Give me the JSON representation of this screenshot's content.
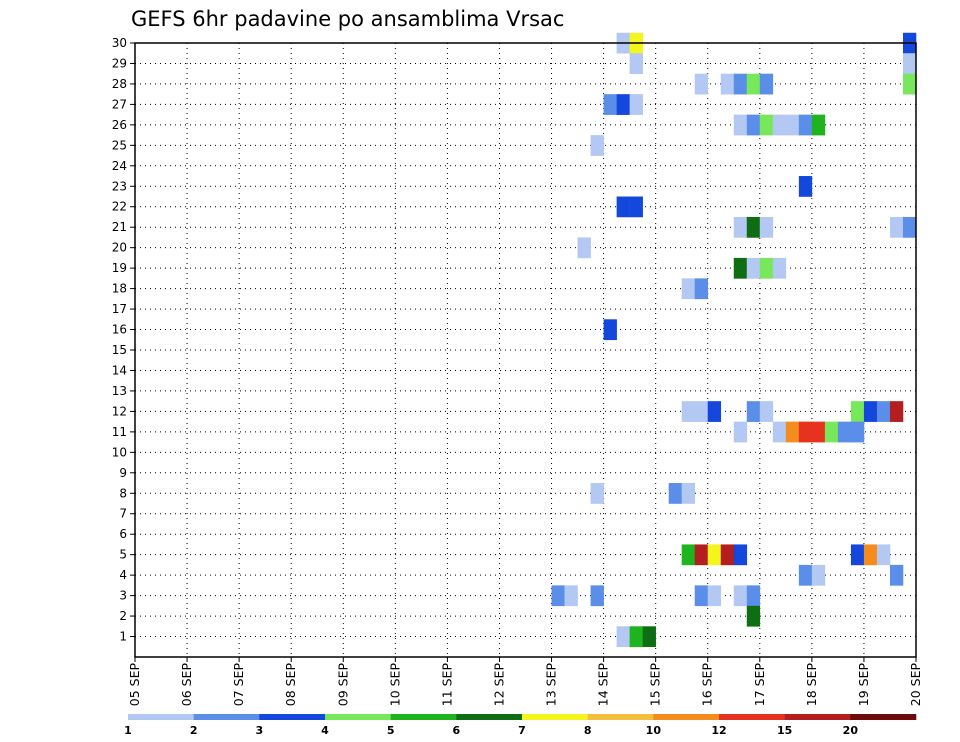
{
  "chart_data": {
    "type": "heatmap",
    "title": "GEFS 6hr padavine po ansamblima Vrsac",
    "xlabel": "",
    "ylabel": "",
    "x_tick_labels": [
      "05 SEP",
      "06 SEP",
      "07 SEP",
      "08 SEP",
      "09 SEP",
      "10 SEP",
      "11 SEP",
      "12 SEP",
      "13 SEP",
      "14 SEP",
      "15 SEP",
      "16 SEP",
      "17 SEP",
      "18 SEP",
      "19 SEP",
      "20 SEP"
    ],
    "y_tick_labels": [
      "1",
      "2",
      "3",
      "4",
      "5",
      "6",
      "7",
      "8",
      "9",
      "10",
      "11",
      "12",
      "13",
      "14",
      "15",
      "16",
      "17",
      "18",
      "19",
      "20",
      "21",
      "22",
      "23",
      "24",
      "25",
      "26",
      "27",
      "28",
      "29",
      "30"
    ],
    "x_range": [
      0,
      60
    ],
    "y_range": [
      0,
      30
    ],
    "x_units": "6-hour steps from 05 SEP 00Z",
    "grid": true,
    "colorbar": {
      "levels": [
        "1",
        "2",
        "3",
        "4",
        "5",
        "6",
        "7",
        "8",
        "10",
        "12",
        "15",
        "20"
      ],
      "colors": [
        "#b3c8f2",
        "#5b8ee8",
        "#1447dc",
        "#76e85a",
        "#1eb41e",
        "#0f6e14",
        "#f5f51e",
        "#f5be3c",
        "#f58c1e",
        "#e6321e",
        "#b41e1e",
        "#6e0a0a"
      ]
    },
    "points": [
      {
        "x": 37.5,
        "y": 30,
        "c": 0
      },
      {
        "x": 38.5,
        "y": 30,
        "c": 6
      },
      {
        "x": 59.5,
        "y": 30,
        "c": 2
      },
      {
        "x": 38.5,
        "y": 29,
        "c": 0
      },
      {
        "x": 59.5,
        "y": 29,
        "c": 0
      },
      {
        "x": 43.5,
        "y": 28,
        "c": 0
      },
      {
        "x": 45.5,
        "y": 28,
        "c": 0
      },
      {
        "x": 46.5,
        "y": 28,
        "c": 1
      },
      {
        "x": 47.5,
        "y": 28,
        "c": 3
      },
      {
        "x": 48.5,
        "y": 28,
        "c": 1
      },
      {
        "x": 59.5,
        "y": 28,
        "c": 3
      },
      {
        "x": 36.5,
        "y": 27,
        "c": 1
      },
      {
        "x": 37.5,
        "y": 27,
        "c": 2
      },
      {
        "x": 38.5,
        "y": 27,
        "c": 0
      },
      {
        "x": 46.5,
        "y": 26,
        "c": 0
      },
      {
        "x": 47.5,
        "y": 26,
        "c": 1
      },
      {
        "x": 48.5,
        "y": 26,
        "c": 3
      },
      {
        "x": 49.5,
        "y": 26,
        "c": 0
      },
      {
        "x": 50.5,
        "y": 26,
        "c": 0
      },
      {
        "x": 51.5,
        "y": 26,
        "c": 1
      },
      {
        "x": 52.5,
        "y": 26,
        "c": 4
      },
      {
        "x": 35.5,
        "y": 25,
        "c": 0
      },
      {
        "x": 51.5,
        "y": 23,
        "c": 2
      },
      {
        "x": 37.5,
        "y": 22,
        "c": 2
      },
      {
        "x": 38.5,
        "y": 22,
        "c": 2
      },
      {
        "x": 46.5,
        "y": 21,
        "c": 0
      },
      {
        "x": 47.5,
        "y": 21,
        "c": 5
      },
      {
        "x": 48.5,
        "y": 21,
        "c": 0
      },
      {
        "x": 58.5,
        "y": 21,
        "c": 0
      },
      {
        "x": 59.5,
        "y": 21,
        "c": 1
      },
      {
        "x": 34.5,
        "y": 20,
        "c": 0
      },
      {
        "x": 46.5,
        "y": 19,
        "c": 5
      },
      {
        "x": 47.5,
        "y": 19,
        "c": 0
      },
      {
        "x": 48.5,
        "y": 19,
        "c": 3
      },
      {
        "x": 49.5,
        "y": 19,
        "c": 0
      },
      {
        "x": 42.5,
        "y": 18,
        "c": 0
      },
      {
        "x": 43.5,
        "y": 18,
        "c": 1
      },
      {
        "x": 36.5,
        "y": 16,
        "c": 2
      },
      {
        "x": 42.5,
        "y": 12,
        "c": 0
      },
      {
        "x": 43.5,
        "y": 12,
        "c": 0
      },
      {
        "x": 44.5,
        "y": 12,
        "c": 2
      },
      {
        "x": 47.5,
        "y": 12,
        "c": 1
      },
      {
        "x": 48.5,
        "y": 12,
        "c": 0
      },
      {
        "x": 55.5,
        "y": 12,
        "c": 3
      },
      {
        "x": 56.5,
        "y": 12,
        "c": 2
      },
      {
        "x": 57.5,
        "y": 12,
        "c": 1
      },
      {
        "x": 58.5,
        "y": 12,
        "c": 10
      },
      {
        "x": 46.5,
        "y": 11,
        "c": 0
      },
      {
        "x": 49.5,
        "y": 11,
        "c": 0
      },
      {
        "x": 50.5,
        "y": 11,
        "c": 8
      },
      {
        "x": 51.5,
        "y": 11,
        "c": 9
      },
      {
        "x": 52.5,
        "y": 11,
        "c": 9
      },
      {
        "x": 53.5,
        "y": 11,
        "c": 3
      },
      {
        "x": 54.5,
        "y": 11,
        "c": 1
      },
      {
        "x": 55.5,
        "y": 11,
        "c": 1
      },
      {
        "x": 35.5,
        "y": 8,
        "c": 0
      },
      {
        "x": 41.5,
        "y": 8,
        "c": 1
      },
      {
        "x": 42.5,
        "y": 8,
        "c": 0
      },
      {
        "x": 42.5,
        "y": 5,
        "c": 4
      },
      {
        "x": 43.5,
        "y": 5,
        "c": 10
      },
      {
        "x": 44.5,
        "y": 5,
        "c": 6
      },
      {
        "x": 45.5,
        "y": 5,
        "c": 10
      },
      {
        "x": 46.5,
        "y": 5,
        "c": 2
      },
      {
        "x": 55.5,
        "y": 5,
        "c": 2
      },
      {
        "x": 56.5,
        "y": 5,
        "c": 8
      },
      {
        "x": 57.5,
        "y": 5,
        "c": 0
      },
      {
        "x": 51.5,
        "y": 4,
        "c": 1
      },
      {
        "x": 52.5,
        "y": 4,
        "c": 0
      },
      {
        "x": 58.5,
        "y": 4,
        "c": 1
      },
      {
        "x": 32.5,
        "y": 3,
        "c": 1
      },
      {
        "x": 33.5,
        "y": 3,
        "c": 0
      },
      {
        "x": 35.5,
        "y": 3,
        "c": 1
      },
      {
        "x": 43.5,
        "y": 3,
        "c": 1
      },
      {
        "x": 44.5,
        "y": 3,
        "c": 0
      },
      {
        "x": 46.5,
        "y": 3,
        "c": 0
      },
      {
        "x": 47.5,
        "y": 3,
        "c": 1
      },
      {
        "x": 47.5,
        "y": 2,
        "c": 5
      },
      {
        "x": 37.5,
        "y": 1,
        "c": 0
      },
      {
        "x": 38.5,
        "y": 1,
        "c": 4
      },
      {
        "x": 39.5,
        "y": 1,
        "c": 5
      }
    ]
  }
}
